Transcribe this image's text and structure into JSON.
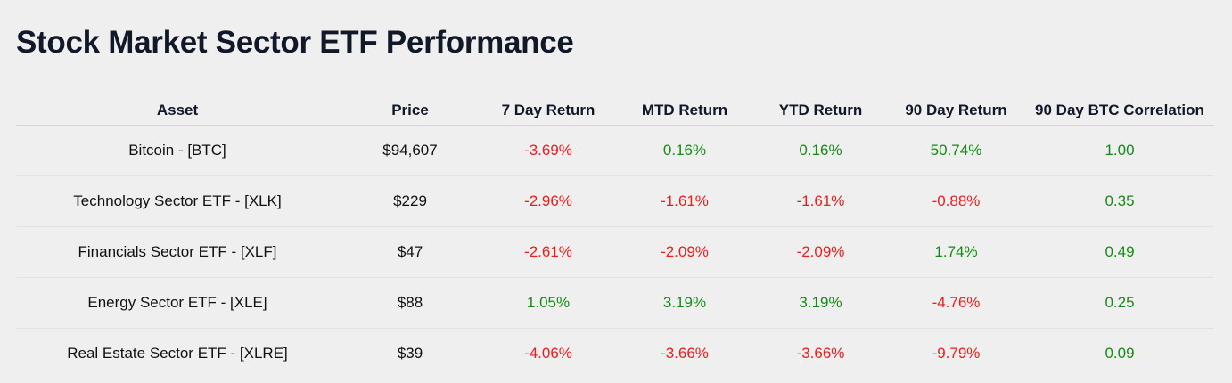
{
  "title": "Stock Market Sector ETF Performance",
  "colors": {
    "negative": "#ee1c1c",
    "positive": "#168a16"
  },
  "columns": [
    "Asset",
    "Price",
    "7 Day Return",
    "MTD Return",
    "YTD Return",
    "90 Day Return",
    "90 Day BTC Correlation"
  ],
  "rows": [
    [
      "Bitcoin - [BTC]",
      "$94,607",
      "-3.69%",
      "0.16%",
      "0.16%",
      "50.74%",
      "1.00"
    ],
    [
      "Technology Sector ETF - [XLK]",
      "$229",
      "-2.96%",
      "-1.61%",
      "-1.61%",
      "-0.88%",
      "0.35"
    ],
    [
      "Financials Sector ETF - [XLF]",
      "$47",
      "-2.61%",
      "-2.09%",
      "-2.09%",
      "1.74%",
      "0.49"
    ],
    [
      "Energy Sector ETF - [XLE]",
      "$88",
      "1.05%",
      "3.19%",
      "3.19%",
      "-4.76%",
      "0.25"
    ],
    [
      "Real Estate Sector ETF - [XLRE]",
      "$39",
      "-4.06%",
      "-3.66%",
      "-3.66%",
      "-9.79%",
      "0.09"
    ]
  ]
}
